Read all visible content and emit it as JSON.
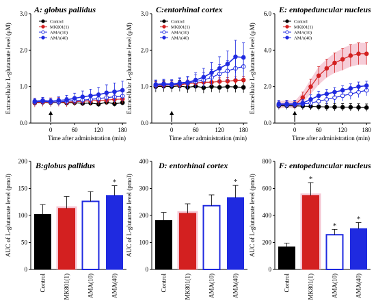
{
  "colors": {
    "control": "#000000",
    "mk801": "#d32020",
    "mk801_band": "#f2b8c8",
    "ama10": "#1f2ae0",
    "ama40": "#1f2ae0"
  },
  "chart_data": [
    {
      "type": "line",
      "title": "A: globus pallidus",
      "xlabel": "Time after administration (min)",
      "ylabel": "Extracellular L-glutamate level (μM)",
      "x_ticks": [
        "0",
        "60",
        "120",
        "180"
      ],
      "y_ticks": [
        "0.0",
        "1.0",
        "2.0",
        "3.0"
      ],
      "ylim": [
        0,
        3
      ],
      "x": [
        -40,
        -20,
        0,
        20,
        40,
        60,
        80,
        100,
        120,
        140,
        160,
        180
      ],
      "arrow_at": 0,
      "legend": [
        "Control",
        "MK801(1)",
        "AMA(10)",
        "AMA(40)"
      ],
      "series": [
        {
          "name": "Control",
          "values": [
            0.55,
            0.57,
            0.56,
            0.57,
            0.55,
            0.56,
            0.54,
            0.55,
            0.52,
            0.57,
            0.53,
            0.56
          ],
          "errors": [
            0.07,
            0.07,
            0.07,
            0.07,
            0.07,
            0.07,
            0.07,
            0.07,
            0.07,
            0.07,
            0.07,
            0.07
          ]
        },
        {
          "name": "MK801(1)",
          "values": [
            0.56,
            0.58,
            0.57,
            0.58,
            0.57,
            0.59,
            0.6,
            0.61,
            0.62,
            0.63,
            0.65,
            0.66
          ],
          "errors": [
            0.12,
            0.12,
            0.12,
            0.12,
            0.12,
            0.12,
            0.12,
            0.12,
            0.12,
            0.12,
            0.12,
            0.12
          ]
        },
        {
          "name": "AMA(10)",
          "values": [
            0.58,
            0.6,
            0.58,
            0.58,
            0.6,
            0.62,
            0.63,
            0.65,
            0.67,
            0.7,
            0.72,
            0.74
          ],
          "errors": [
            0.1,
            0.1,
            0.1,
            0.1,
            0.1,
            0.1,
            0.12,
            0.12,
            0.12,
            0.12,
            0.14,
            0.14
          ]
        },
        {
          "name": "AMA(40)",
          "values": [
            0.6,
            0.62,
            0.6,
            0.62,
            0.64,
            0.68,
            0.72,
            0.75,
            0.78,
            0.83,
            0.86,
            0.9
          ],
          "errors": [
            0.08,
            0.08,
            0.08,
            0.1,
            0.12,
            0.14,
            0.16,
            0.18,
            0.2,
            0.22,
            0.24,
            0.25
          ]
        }
      ]
    },
    {
      "type": "line",
      "title": "C:entorhinal cortex",
      "xlabel": "Time after administration (min)",
      "ylabel": "Extracellular L-glutamate level (μM)",
      "x_ticks": [
        "0",
        "60",
        "120",
        "180"
      ],
      "y_ticks": [
        "0.0",
        "1.0",
        "2.0",
        "3.0"
      ],
      "ylim": [
        0,
        3
      ],
      "x": [
        -40,
        -20,
        0,
        20,
        40,
        60,
        80,
        100,
        120,
        140,
        160,
        180
      ],
      "arrow_at": 0,
      "legend": [
        "Control",
        "MK801(1)",
        "AMA(10)",
        "AMA(40)"
      ],
      "series": [
        {
          "name": "Control",
          "values": [
            1.0,
            1.01,
            1.0,
            1.02,
            0.98,
            1.01,
            0.97,
            1.0,
            0.98,
            1.0,
            0.99,
            0.98
          ],
          "errors": [
            0.15,
            0.15,
            0.15,
            0.15,
            0.15,
            0.15,
            0.15,
            0.15,
            0.15,
            0.15,
            0.15,
            0.15
          ]
        },
        {
          "name": "MK801(1)",
          "values": [
            1.03,
            1.04,
            1.05,
            1.05,
            1.08,
            1.1,
            1.12,
            1.12,
            1.14,
            1.15,
            1.17,
            1.18
          ],
          "errors": [
            0.1,
            0.1,
            0.1,
            0.1,
            0.1,
            0.1,
            0.1,
            0.1,
            0.1,
            0.1,
            0.1,
            0.1
          ]
        },
        {
          "name": "AMA(10)",
          "values": [
            1.04,
            1.06,
            1.05,
            1.08,
            1.1,
            1.14,
            1.18,
            1.25,
            1.35,
            1.43,
            1.5,
            1.55
          ],
          "errors": [
            0.12,
            0.12,
            0.12,
            0.14,
            0.16,
            0.18,
            0.2,
            0.22,
            0.25,
            0.28,
            0.3,
            0.3
          ]
        },
        {
          "name": "AMA(40)",
          "values": [
            1.06,
            1.08,
            1.07,
            1.1,
            1.12,
            1.18,
            1.26,
            1.38,
            1.5,
            1.62,
            1.82,
            1.8
          ],
          "errors": [
            0.12,
            0.12,
            0.12,
            0.14,
            0.16,
            0.2,
            0.24,
            0.28,
            0.32,
            0.36,
            0.45,
            0.4
          ]
        }
      ]
    },
    {
      "type": "line",
      "title": "E: entopeduncular nucleus",
      "xlabel": "Time after administration (min)",
      "ylabel": "Extracellular L-glutamate level (μM)",
      "x_ticks": [
        "0",
        "60",
        "120",
        "180"
      ],
      "y_ticks": [
        "0.0",
        "2.0",
        "4.0",
        "6.0"
      ],
      "ylim": [
        0,
        6
      ],
      "x": [
        -40,
        -20,
        0,
        20,
        40,
        60,
        80,
        100,
        120,
        140,
        160,
        180
      ],
      "arrow_at": 0,
      "legend": [
        "Control",
        "MK801(1)",
        "AMA(10)",
        "AMA(40)"
      ],
      "series": [
        {
          "name": "Control",
          "values": [
            0.95,
            0.95,
            0.95,
            0.93,
            0.92,
            0.9,
            0.88,
            0.88,
            0.87,
            0.87,
            0.86,
            0.85
          ],
          "errors": [
            0.2,
            0.2,
            0.2,
            0.2,
            0.2,
            0.2,
            0.2,
            0.2,
            0.2,
            0.2,
            0.2,
            0.2
          ]
        },
        {
          "name": "MK801(1)",
          "values": [
            1.0,
            1.05,
            1.0,
            1.4,
            2.0,
            2.6,
            3.0,
            3.3,
            3.5,
            3.7,
            3.8,
            3.8
          ],
          "errors": [
            0.2,
            0.2,
            0.2,
            0.3,
            0.4,
            0.5,
            0.5,
            0.55,
            0.6,
            0.6,
            0.6,
            0.6
          ]
        },
        {
          "name": "AMA(10)",
          "values": [
            1.0,
            1.0,
            1.02,
            1.05,
            1.1,
            1.2,
            1.3,
            1.4,
            1.5,
            1.6,
            1.7,
            1.8
          ],
          "errors": [
            0.2,
            0.2,
            0.2,
            0.2,
            0.25,
            0.25,
            0.3,
            0.3,
            0.3,
            0.3,
            0.3,
            0.3
          ]
        },
        {
          "name": "AMA(40)",
          "values": [
            1.05,
            1.05,
            1.05,
            1.1,
            1.3,
            1.5,
            1.6,
            1.7,
            1.8,
            1.9,
            2.0,
            2.05
          ],
          "errors": [
            0.2,
            0.2,
            0.2,
            0.2,
            0.25,
            0.25,
            0.25,
            0.25,
            0.25,
            0.25,
            0.25,
            0.25
          ]
        }
      ]
    },
    {
      "type": "bar",
      "title": "B:globus pallidus",
      "ylabel": "AUC of L-glutamate level (pmol)",
      "categories": [
        "Control",
        "MK801(1)",
        "AMA(10)",
        "AMA(40)"
      ],
      "values": [
        102,
        113,
        126,
        137
      ],
      "errors": [
        18,
        22,
        18,
        18
      ],
      "significant": [
        false,
        false,
        false,
        true
      ],
      "y_ticks": [
        "0",
        "50",
        "100",
        "150",
        "200"
      ],
      "ylim": [
        0,
        200
      ]
    },
    {
      "type": "bar",
      "title": "D: entorhinal cortex",
      "ylabel": "AUC of L-glutamate level (pmol)",
      "categories": [
        "Control",
        "MK801(1)",
        "AMA(10)",
        "AMA(40)"
      ],
      "values": [
        181,
        208,
        236,
        266
      ],
      "errors": [
        30,
        35,
        40,
        45
      ],
      "significant": [
        false,
        false,
        false,
        true
      ],
      "y_ticks": [
        "0",
        "100",
        "200",
        "300",
        "400"
      ],
      "ylim": [
        0,
        400
      ]
    },
    {
      "type": "bar",
      "title": "F: entopeduncular nucleus",
      "ylabel": "AUC of L-glutamate level (pmol)",
      "categories": [
        "Control",
        "MK801(1)",
        "AMA(10)",
        "AMA(40)"
      ],
      "values": [
        167,
        548,
        257,
        302
      ],
      "errors": [
        28,
        95,
        40,
        45
      ],
      "significant": [
        false,
        true,
        true,
        true
      ],
      "y_ticks": [
        "0",
        "200",
        "400",
        "600",
        "800"
      ],
      "ylim": [
        0,
        800
      ]
    }
  ]
}
